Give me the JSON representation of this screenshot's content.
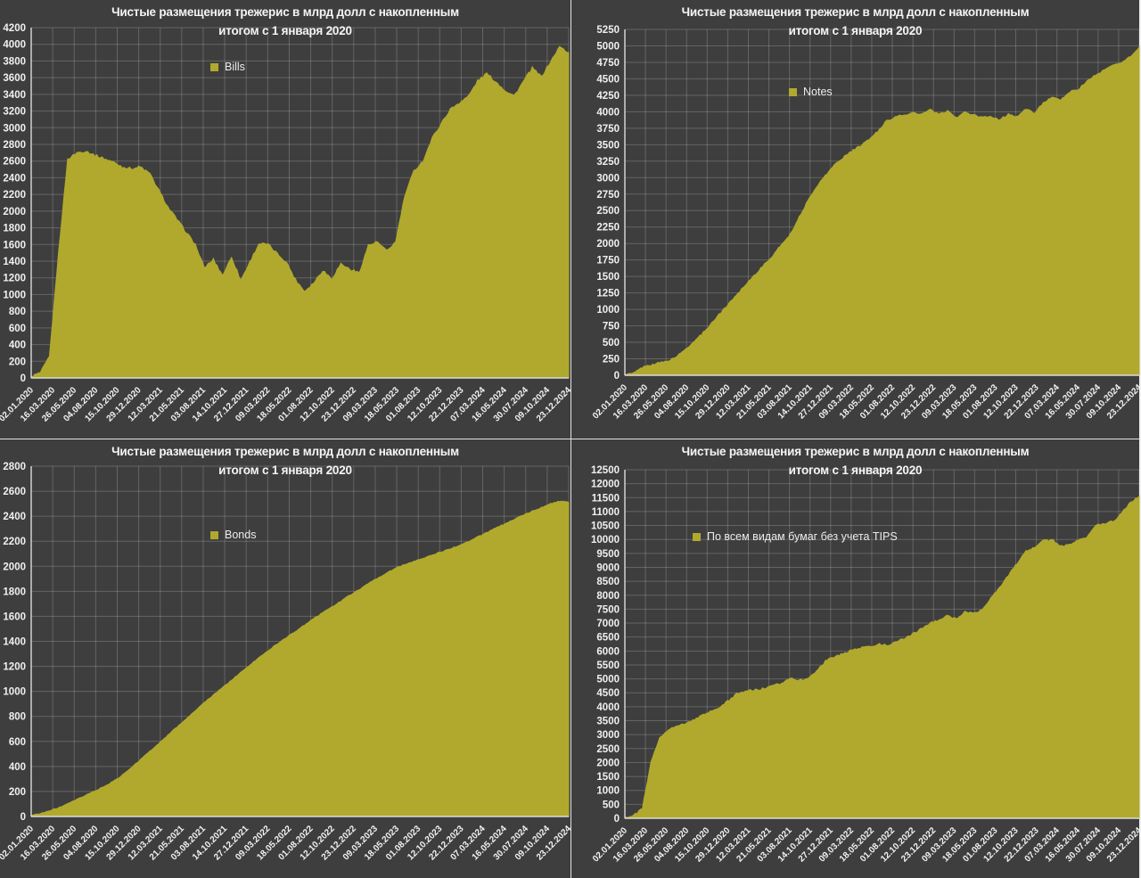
{
  "colors": {
    "background": "#3e3e3e",
    "area_fill": "#b1a92d",
    "gridline": "rgba(255,255,255,0.20)",
    "axis_line": "#dcdcdc",
    "text": "#f0f0f0",
    "divider": "#e2e2e2"
  },
  "title_line1": "Чистые размещения трежерис в млрд долл с накопленным",
  "title_line2": "итогом с 1 января 2020",
  "x_labels": [
    "02.01.2020",
    "16.03.2020",
    "26.05.2020",
    "04.08.2020",
    "15.10.2020",
    "29.12.2020",
    "12.03.2021",
    "21.05.2021",
    "03.08.2021",
    "14.10.2021",
    "27.12.2021",
    "09.03.2022",
    "18.05.2022",
    "01.08.2022",
    "12.10.2022",
    "23.12.2022",
    "09.03.2023",
    "18.05.2023",
    "01.08.2023",
    "12.10.2023",
    "22.12.2023",
    "07.03.2024",
    "16.05.2024",
    "30.07.2024",
    "09.10.2024",
    "23.12.2024"
  ],
  "chart_data": [
    {
      "type": "area",
      "title": "Чистые размещения трежерис в млрд долл с накопленным итогом с 1 января 2020",
      "legend": "Bills",
      "xlabel": "",
      "ylabel": "",
      "ylim": [
        0,
        4200
      ],
      "ystep": 200,
      "grid": true,
      "legend_position": "inside-top-left",
      "x_monthly": "2020-01 .. 2024-12",
      "values": [
        20,
        60,
        250,
        1500,
        2620,
        2700,
        2720,
        2670,
        2630,
        2590,
        2530,
        2510,
        2530,
        2450,
        2250,
        2050,
        1900,
        1750,
        1600,
        1320,
        1420,
        1230,
        1450,
        1170,
        1390,
        1610,
        1600,
        1490,
        1390,
        1180,
        1040,
        1140,
        1290,
        1190,
        1370,
        1300,
        1260,
        1590,
        1630,
        1520,
        1630,
        2180,
        2480,
        2600,
        2870,
        3050,
        3220,
        3300,
        3380,
        3560,
        3650,
        3550,
        3450,
        3380,
        3550,
        3715,
        3610,
        3790,
        3970,
        3900
      ],
      "noise": 16
    },
    {
      "type": "area",
      "title": "Чистые размещения трежерис в млрд долл с накопленным итогом с 1 января 2020",
      "legend": "Notes",
      "xlabel": "",
      "ylabel": "",
      "ylim": [
        0,
        5250
      ],
      "ystep": 250,
      "grid": true,
      "legend_position": "inside-top-left",
      "x_monthly": "2020-01 .. 2024-12",
      "values": [
        10,
        30,
        120,
        160,
        190,
        220,
        290,
        400,
        520,
        650,
        800,
        950,
        1100,
        1250,
        1400,
        1540,
        1680,
        1820,
        1990,
        2150,
        2400,
        2650,
        2870,
        3030,
        3190,
        3300,
        3400,
        3480,
        3580,
        3700,
        3860,
        3920,
        3950,
        3980,
        3960,
        4030,
        3960,
        4010,
        3910,
        3990,
        3950,
        3910,
        3930,
        3880,
        3960,
        3930,
        4040,
        3980,
        4140,
        4210,
        4180,
        4300,
        4340,
        4460,
        4560,
        4630,
        4710,
        4750,
        4840,
        4980
      ],
      "noise": 14
    },
    {
      "type": "area",
      "title": "Чистые размещения трежерис в млрд долл с накопленным итогом с 1 января 2020",
      "legend": "Bonds",
      "xlabel": "",
      "ylabel": "",
      "ylim": [
        0,
        2800
      ],
      "ystep": 200,
      "grid": true,
      "legend_position": "inside-top-left",
      "x_monthly": "2020-01 .. 2024-12",
      "values": [
        10,
        25,
        45,
        70,
        100,
        135,
        170,
        205,
        240,
        280,
        330,
        390,
        455,
        520,
        585,
        650,
        715,
        780,
        845,
        910,
        970,
        1030,
        1090,
        1150,
        1210,
        1270,
        1325,
        1380,
        1430,
        1480,
        1530,
        1580,
        1630,
        1675,
        1720,
        1770,
        1815,
        1860,
        1905,
        1945,
        1985,
        2015,
        2040,
        2065,
        2090,
        2115,
        2140,
        2165,
        2200,
        2235,
        2270,
        2305,
        2340,
        2375,
        2410,
        2440,
        2470,
        2500,
        2520,
        2510
      ],
      "noise": 4
    },
    {
      "type": "area",
      "title": "Чистые размещения трежерис в млрд долл с накопленным итогом с 1 января 2020",
      "legend": "По всем видам бумаг без учета TIPS",
      "xlabel": "",
      "ylabel": "",
      "ylim": [
        0,
        12500
      ],
      "ystep": 500,
      "grid": true,
      "legend_position": "inside-top-left",
      "x_monthly": "2020-01 .. 2024-12",
      "values": [
        30,
        100,
        350,
        2000,
        2900,
        3200,
        3300,
        3400,
        3550,
        3700,
        3850,
        4000,
        4250,
        4500,
        4580,
        4600,
        4650,
        4750,
        4850,
        5050,
        4950,
        5000,
        5300,
        5630,
        5800,
        5900,
        6030,
        6100,
        6150,
        6250,
        6200,
        6300,
        6450,
        6600,
        6800,
        7000,
        7100,
        7250,
        7150,
        7400,
        7350,
        7500,
        7900,
        8300,
        8700,
        9150,
        9600,
        9700,
        9950,
        9985,
        9765,
        9800,
        9985,
        10100,
        10500,
        10550,
        10650,
        10940,
        11350,
        11550
      ],
      "noise": 38
    }
  ]
}
